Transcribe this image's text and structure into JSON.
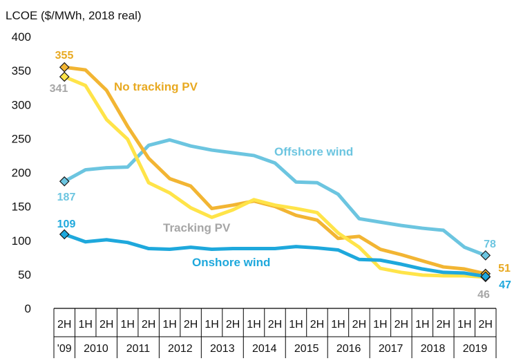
{
  "chart_data": {
    "type": "line",
    "ylabel": "LCOE ($/MWh, 2018 real)",
    "ylim": [
      0,
      400
    ],
    "yticks": [
      0,
      50,
      100,
      150,
      200,
      250,
      300,
      350,
      400
    ],
    "grid": false,
    "categories": [
      "2H",
      "1H",
      "2H",
      "1H",
      "2H",
      "1H",
      "2H",
      "1H",
      "2H",
      "1H",
      "2H",
      "1H",
      "2H",
      "1H",
      "2H",
      "1H",
      "2H",
      "1H",
      "2H",
      "1H",
      "2H"
    ],
    "years": [
      {
        "label": "'09",
        "start": 0,
        "end": 0
      },
      {
        "label": "2010",
        "start": 1,
        "end": 2
      },
      {
        "label": "2011",
        "start": 3,
        "end": 4
      },
      {
        "label": "2012",
        "start": 5,
        "end": 6
      },
      {
        "label": "2013",
        "start": 7,
        "end": 8
      },
      {
        "label": "2014",
        "start": 9,
        "end": 10
      },
      {
        "label": "2015",
        "start": 11,
        "end": 12
      },
      {
        "label": "2016",
        "start": 13,
        "end": 14
      },
      {
        "label": "2017",
        "start": 15,
        "end": 16
      },
      {
        "label": "2018",
        "start": 17,
        "end": 18
      },
      {
        "label": "2019",
        "start": 19,
        "end": 20
      }
    ],
    "series": [
      {
        "name": "Offshore wind",
        "color": "#6CC5E0",
        "values": [
          187,
          204,
          207,
          208,
          240,
          248,
          239,
          233,
          229,
          225,
          214,
          186,
          185,
          168,
          132,
          127,
          122,
          118,
          115,
          90,
          78
        ],
        "start_label": "187",
        "end_label": "78"
      },
      {
        "name": "No tracking PV",
        "color": "#F2B533",
        "values": [
          355,
          351,
          321,
          268,
          221,
          191,
          180,
          147,
          152,
          158,
          150,
          137,
          130,
          103,
          106,
          87,
          79,
          70,
          61,
          58,
          51
        ],
        "start_label": "355",
        "end_label": "51"
      },
      {
        "name": "Tracking PV",
        "color": "#FFE449",
        "values": [
          341,
          328,
          278,
          249,
          185,
          170,
          148,
          134,
          145,
          160,
          152,
          147,
          141,
          111,
          90,
          59,
          53,
          49,
          48,
          48,
          46
        ],
        "start_label": "341",
        "end_label": "46"
      },
      {
        "name": "Onshore wind",
        "color": "#1EA8DC",
        "values": [
          109,
          98,
          101,
          97,
          88,
          87,
          90,
          87,
          88,
          88,
          88,
          91,
          89,
          86,
          72,
          71,
          65,
          58,
          53,
          52,
          47
        ],
        "start_label": "109",
        "end_label": "47"
      }
    ],
    "series_label_colors": {
      "No tracking PV": "#E8A921",
      "Tracking PV": "#A6A6A6",
      "Offshore wind": "#6CC5E0",
      "Onshore wind": "#1EA8DC"
    },
    "data_label_colors": {
      "355": "#E8A921",
      "341": "#A6A6A6",
      "187": "#6CC5E0",
      "109": "#1EA8DC",
      "78": "#6CC5E0",
      "51": "#E8A921",
      "47": "#1EA8DC",
      "46": "#A6A6A6"
    }
  }
}
